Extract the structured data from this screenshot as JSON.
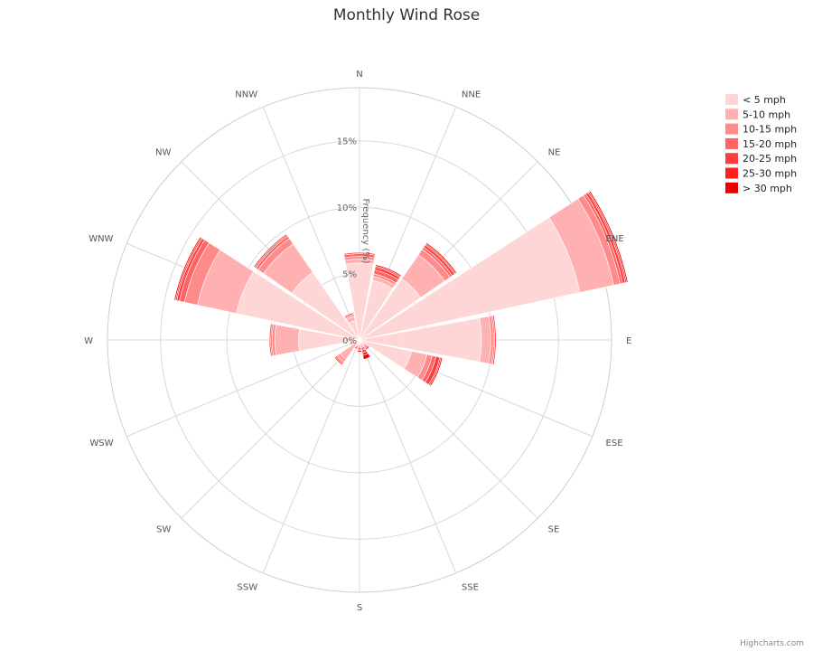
{
  "chart_data": {
    "type": "polar-stacked-bar",
    "title": "Monthly Wind Rose",
    "radial_axis_title": "Frequency (%)",
    "radial_ticks": [
      "0%",
      "5%",
      "10%",
      "15%"
    ],
    "radial_range": [
      0,
      19
    ],
    "grid": true,
    "legend_position": "top-right",
    "directions": [
      "N",
      "NNE",
      "NE",
      "ENE",
      "E",
      "ESE",
      "SE",
      "SSE",
      "S",
      "SSW",
      "SW",
      "WSW",
      "W",
      "WNW",
      "NW",
      "NNW"
    ],
    "series": [
      {
        "name": "< 5 mph",
        "color": "#ffd6d6",
        "values": [
          5.8,
          4.6,
          5.6,
          17.0,
          9.2,
          4.0,
          0.3,
          0.3,
          0.3,
          0.3,
          0.4,
          0.4,
          4.6,
          9.5,
          6.2,
          1.5
        ]
      },
      {
        "name": "5-10 mph",
        "color": "#ffb0b0",
        "values": [
          0.3,
          0.3,
          2.2,
          2.6,
          0.7,
          1.2,
          0.1,
          0.2,
          0.1,
          0.1,
          1.4,
          0.1,
          1.8,
          3.0,
          2.6,
          0.3
        ]
      },
      {
        "name": "10-15 mph",
        "color": "#ff8a8a",
        "values": [
          0.2,
          0.2,
          0.5,
          0.5,
          0.2,
          0.4,
          0.1,
          0.1,
          0.1,
          0.1,
          0.2,
          0.1,
          0.2,
          1.0,
          0.5,
          0.1
        ]
      },
      {
        "name": "15-20 mph",
        "color": "#ff6363",
        "values": [
          0.2,
          0.3,
          0.2,
          0.2,
          0.1,
          0.3,
          0.1,
          0.2,
          0.1,
          0.1,
          0.1,
          0.1,
          0.1,
          0.4,
          0.2,
          0.1
        ]
      },
      {
        "name": "20-25 mph",
        "color": "#ff3d3d",
        "values": [
          0.1,
          0.2,
          0.2,
          0.2,
          0.1,
          0.3,
          0.1,
          0.2,
          0.1,
          0.1,
          0.1,
          0.0,
          0.1,
          0.2,
          0.1,
          0.1
        ]
      },
      {
        "name": "25-30 mph",
        "color": "#ff1f1f",
        "values": [
          0.0,
          0.1,
          0.1,
          0.1,
          0.0,
          0.1,
          0.1,
          0.2,
          0.1,
          0.0,
          0.1,
          0.0,
          0.0,
          0.1,
          0.1,
          0.0
        ]
      },
      {
        "name": "> 30 mph",
        "color": "#ee0000",
        "values": [
          0.0,
          0.1,
          0.1,
          0.1,
          0.0,
          0.1,
          0.1,
          0.3,
          0.1,
          0.0,
          0.0,
          0.0,
          0.0,
          0.1,
          0.0,
          0.0
        ]
      }
    ]
  },
  "credits": "Highcharts.com"
}
